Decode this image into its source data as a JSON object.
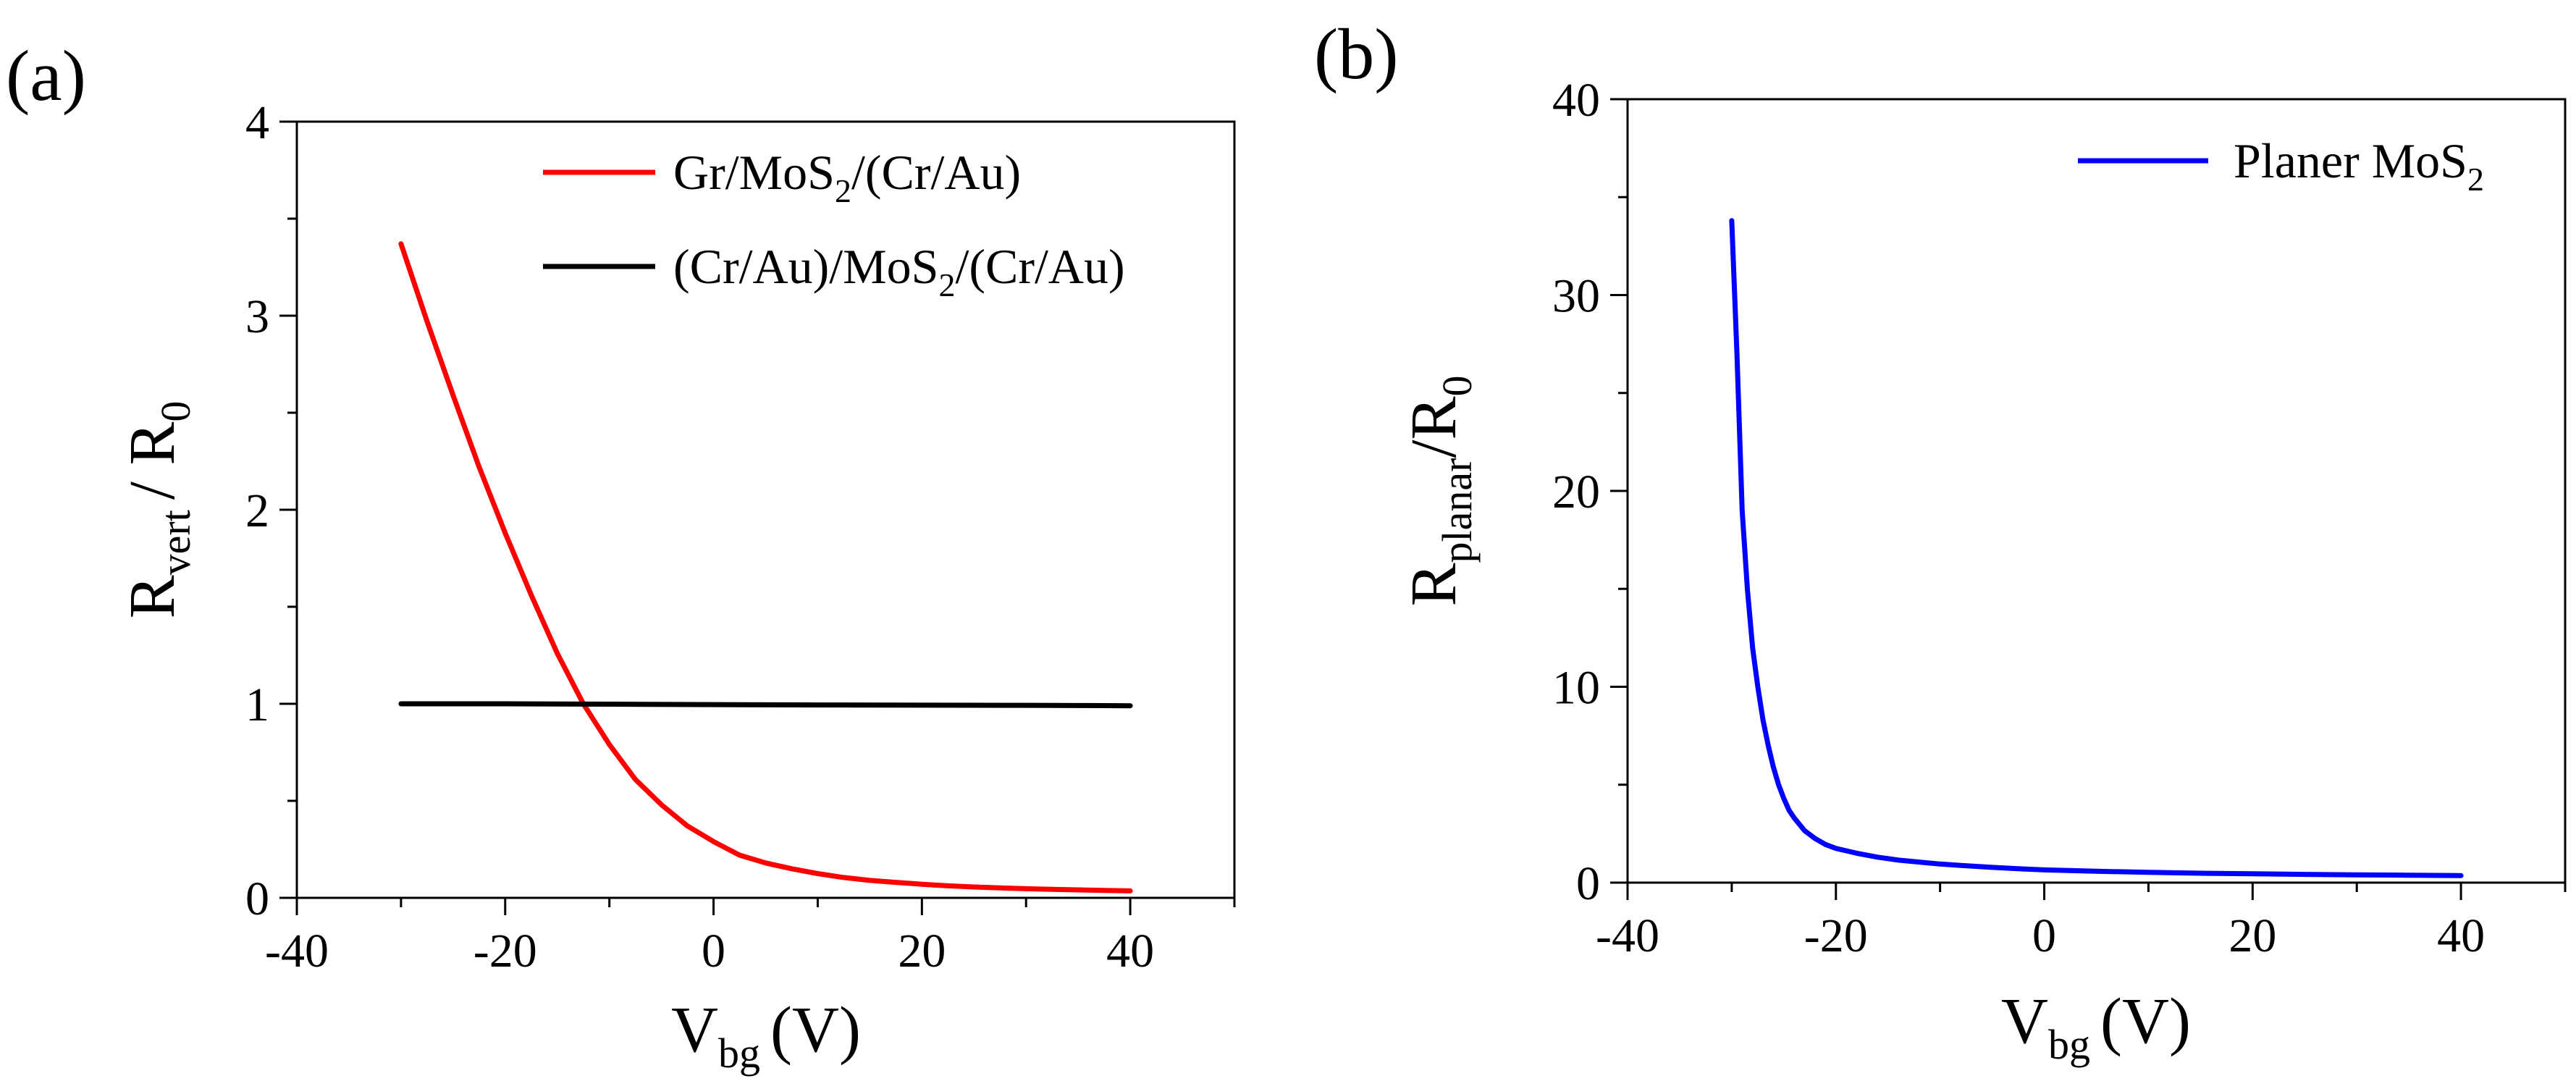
{
  "chart_data": [
    {
      "type": "line",
      "panel_label": "(a)",
      "xlabel": {
        "main": "V",
        "sub": "bg",
        "unit": "(V)"
      },
      "ylabel": {
        "main": "R",
        "sub": "vert",
        "rest": "/ R",
        "sub2": "0"
      },
      "xlim": [
        -40,
        50
      ],
      "ylim": [
        0,
        4
      ],
      "xticks": [
        -40,
        -20,
        0,
        20,
        40
      ],
      "xtick_labels": [
        "-40",
        "-20",
        "0",
        "20",
        "40"
      ],
      "yticks": [
        0,
        1,
        2,
        3,
        4
      ],
      "ytick_labels": [
        "0",
        "1",
        "2",
        "3",
        "4"
      ],
      "legend_position": "top-right",
      "series": [
        {
          "name": "Gr/MoS2/(Cr/Au)",
          "legend": {
            "pre": "Gr/MoS",
            "sub": "2",
            "post": "/(Cr/Au)"
          },
          "color": "#ff0000",
          "x": [
            -30,
            -27.5,
            -25,
            -22.5,
            -20,
            -17.5,
            -15,
            -12.5,
            -10,
            -7.5,
            -5,
            -2.5,
            0,
            2.5,
            5,
            7.5,
            10,
            12.5,
            15,
            17.5,
            20,
            22.5,
            25,
            27.5,
            30,
            32.5,
            35,
            37.5,
            40
          ],
          "y": [
            3.37,
            2.97,
            2.59,
            2.22,
            1.88,
            1.56,
            1.26,
            1.0,
            0.79,
            0.61,
            0.48,
            0.37,
            0.29,
            0.22,
            0.18,
            0.15,
            0.125,
            0.105,
            0.09,
            0.08,
            0.07,
            0.062,
            0.056,
            0.051,
            0.047,
            0.044,
            0.041,
            0.038,
            0.036
          ]
        },
        {
          "name": "(Cr/Au)/MoS2/(Cr/Au)",
          "legend": {
            "pre": "(Cr/Au)/MoS",
            "sub": "2",
            "post": "/(Cr/Au)"
          },
          "color": "#000000",
          "x": [
            -30,
            -20,
            -10,
            0,
            10,
            20,
            30,
            40
          ],
          "y": [
            1.0,
            1.0,
            0.998,
            0.996,
            0.994,
            0.993,
            0.992,
            0.99
          ]
        }
      ]
    },
    {
      "type": "line",
      "panel_label": "(b)",
      "xlabel": {
        "main": "V",
        "sub": "bg",
        "unit": "(V)"
      },
      "ylabel": {
        "main": "R",
        "sub": "planar",
        "rest": "/R",
        "sub2": "0"
      },
      "xlim": [
        -40,
        50
      ],
      "ylim": [
        0,
        40
      ],
      "xticks": [
        -40,
        -20,
        0,
        20,
        40
      ],
      "xtick_labels": [
        "-40",
        "-20",
        "0",
        "20",
        "40"
      ],
      "yticks": [
        0,
        10,
        20,
        30,
        40
      ],
      "ytick_labels": [
        "0",
        "10",
        "20",
        "30",
        "40"
      ],
      "legend_position": "top-right",
      "series": [
        {
          "name": "Planer MoS2",
          "legend": {
            "pre": "Planer MoS",
            "sub": "2",
            "post": ""
          },
          "color": "#0000ff",
          "x": [
            -30,
            -29.5,
            -29,
            -28.5,
            -28,
            -27.5,
            -27,
            -26.5,
            -26,
            -25.5,
            -25,
            -24.5,
            -24,
            -23,
            -22,
            -21,
            -20,
            -18,
            -16,
            -14,
            -12,
            -10,
            -8,
            -5,
            -2,
            0,
            5,
            10,
            15,
            20,
            25,
            30,
            35,
            40
          ],
          "y": [
            33.8,
            27.0,
            19.0,
            15.0,
            12.0,
            10.0,
            8.3,
            7.0,
            5.9,
            5.0,
            4.3,
            3.7,
            3.3,
            2.65,
            2.25,
            1.95,
            1.75,
            1.5,
            1.3,
            1.15,
            1.05,
            0.95,
            0.88,
            0.78,
            0.7,
            0.65,
            0.58,
            0.53,
            0.48,
            0.45,
            0.42,
            0.4,
            0.38,
            0.36
          ]
        }
      ]
    }
  ]
}
